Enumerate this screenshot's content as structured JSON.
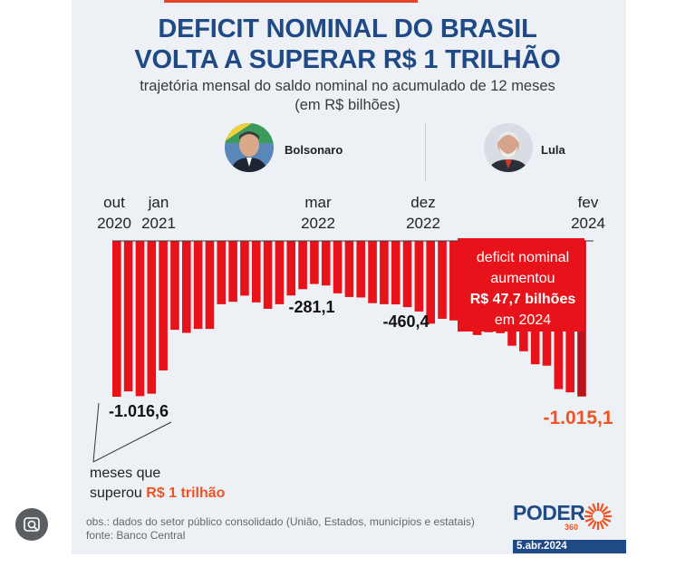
{
  "header": {
    "title_line1": "DEFICIT NOMINAL DO BRASIL",
    "title_line2": "VOLTA A SUPERAR R$ 1 TRILHÃO",
    "subtitle_line1": "trajetória mensal do saldo nominal no acumulado de 12 meses",
    "subtitle_line2": "(em R$ bilhões)"
  },
  "presidents": {
    "left": "Bolsonaro",
    "right": "Lula"
  },
  "ticks": [
    {
      "month": "out",
      "year": "2020"
    },
    {
      "month": "jan",
      "year": "2021"
    },
    {
      "month": "mar",
      "year": "2022"
    },
    {
      "month": "dez",
      "year": "2022"
    },
    {
      "month": "fev",
      "year": "2024"
    }
  ],
  "annotation": {
    "line1": "deficit nominal",
    "line2": "aumentou",
    "line3": "R$ 47,7 bilhões",
    "line4": "em 2024"
  },
  "note": {
    "line1": "meses que",
    "line2_prefix": "superou ",
    "line2_highlight": "R$ 1 trilhão"
  },
  "footer": {
    "obs": "obs.: dados do setor público consolidado (União, Estados, municípios e estatais)",
    "source": "fonte: Banco Central",
    "logo": "PODER",
    "logo_sub": "360",
    "date": "5.abr.2024"
  },
  "colors": {
    "bar": "#e8121b",
    "bar_dark": "#b8141c",
    "accent": "#ef5324",
    "title": "#1f4a86"
  },
  "chart_data": {
    "type": "bar",
    "title": "DEFICIT NOMINAL DO BRASIL VOLTA A SUPERAR R$ 1 TRILHÃO",
    "ylabel": "R$ bilhões",
    "ylim": [
      -1050,
      0
    ],
    "categories": [
      "out/2020",
      "nov/2020",
      "dez/2020",
      "jan/2021",
      "fev/2021",
      "mar/2021",
      "abr/2021",
      "mai/2021",
      "jun/2021",
      "jul/2021",
      "ago/2021",
      "set/2021",
      "out/2021",
      "nov/2021",
      "dez/2021",
      "jan/2022",
      "fev/2022",
      "mar/2022",
      "abr/2022",
      "mai/2022",
      "jun/2022",
      "jul/2022",
      "ago/2022",
      "set/2022",
      "out/2022",
      "nov/2022",
      "dez/2022",
      "jan/2023",
      "fev/2023",
      "mar/2023",
      "abr/2023",
      "mai/2023",
      "jun/2023",
      "jul/2023",
      "ago/2023",
      "set/2023",
      "out/2023",
      "nov/2023",
      "dez/2023",
      "jan/2024",
      "fev/2024"
    ],
    "values": [
      -1016.6,
      -982,
      -1013,
      -997,
      -845,
      -580,
      -600,
      -574,
      -574,
      -413,
      -397,
      -357,
      -401,
      -443,
      -413,
      -356,
      -315,
      -281.1,
      -291,
      -342,
      -366,
      -369,
      -406,
      -413,
      -414,
      -432,
      -460.4,
      -540,
      -508,
      -519,
      -537,
      -614,
      -596,
      -602,
      -684,
      -720,
      -805,
      -814,
      -967,
      -988,
      -1015.1
    ],
    "labels": [
      {
        "category": "out/2020",
        "text": "-1.016,6"
      },
      {
        "category": "mar/2022",
        "text": "-281,1"
      },
      {
        "category": "dez/2022",
        "text": "-460,4"
      },
      {
        "category": "fev/2024",
        "text": "-1.015,1"
      }
    ]
  }
}
